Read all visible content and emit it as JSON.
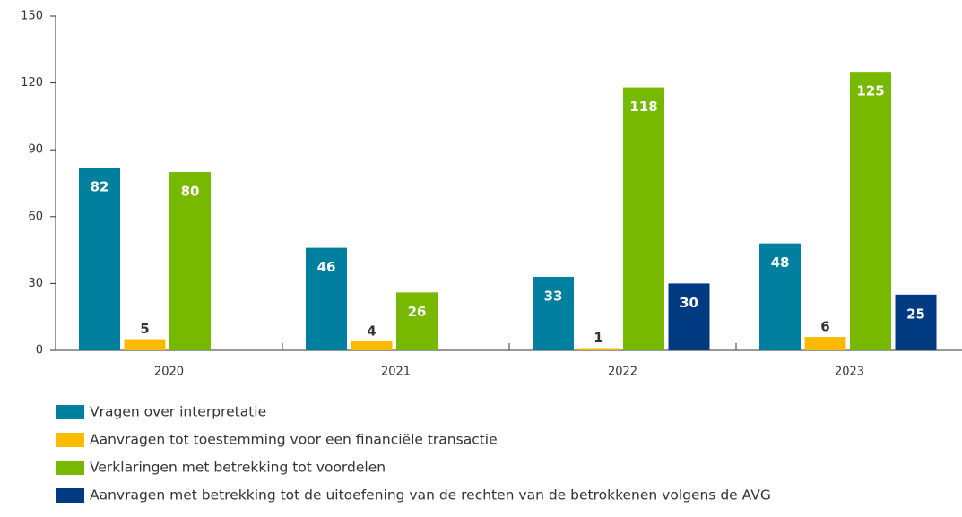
{
  "chart_data": {
    "type": "bar",
    "categories": [
      "2020",
      "2021",
      "2022",
      "2023"
    ],
    "series": [
      {
        "name": "Vragen over interpretatie",
        "color": "#007f9f",
        "values": [
          82,
          46,
          33,
          48
        ]
      },
      {
        "name": "Aanvragen tot toestemming voor een financiële transactie",
        "color": "#fbb900",
        "values": [
          5,
          4,
          1,
          6
        ]
      },
      {
        "name": "Verklaringen met betrekking tot voordelen",
        "color": "#76b900",
        "values": [
          80,
          26,
          118,
          125
        ]
      },
      {
        "name": "Aanvragen met betrekking tot de uitoefening van de rechten van de betrokkenen volgens de AVG",
        "color": "#003a80",
        "values": [
          null,
          null,
          30,
          25
        ]
      }
    ],
    "ylim": [
      0,
      150
    ],
    "yticks": [
      0,
      30,
      60,
      90,
      120,
      150
    ],
    "grid": false
  }
}
